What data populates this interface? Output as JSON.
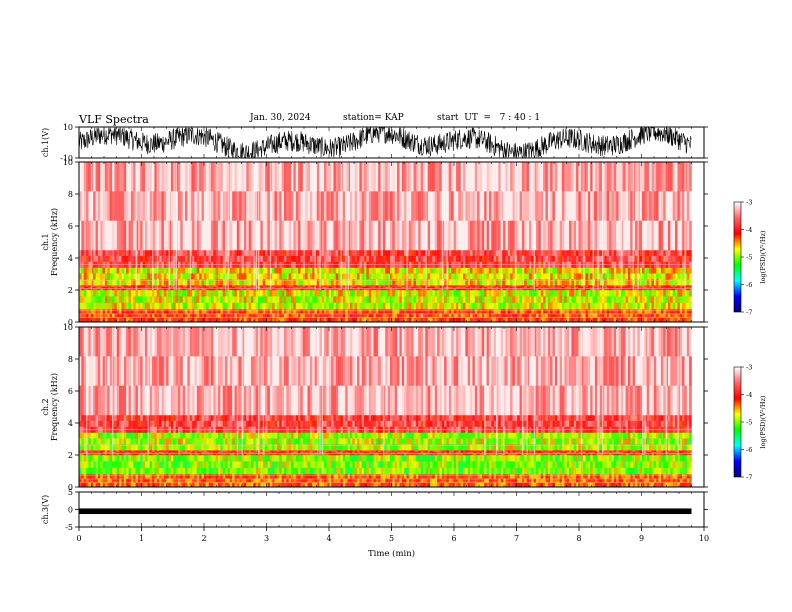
{
  "header": {
    "title": "VLF Spectra",
    "date": "Jan. 30, 2024",
    "station": "station= KAP",
    "start_ut": "start  UT  =   7 : 40 : 1"
  },
  "chart_data": [
    {
      "type": "line",
      "panel": "ch1-waveform",
      "ylabel": "ch.1(V)",
      "ylim": [
        -10,
        10
      ],
      "y_ticks": [
        "10",
        "-10"
      ],
      "xlim": [
        0,
        10
      ],
      "description_values": "dense noisy waveform spanning approx -10 to 10 V over 0-9.8 min"
    },
    {
      "type": "heatmap",
      "panel": "ch1-spectrogram",
      "ylabel": "ch.1\nFrequency (kHz)",
      "ylim": [
        0,
        10
      ],
      "y_ticks": [
        "0",
        "2",
        "4",
        "6",
        "8",
        "10"
      ],
      "xlim": [
        0,
        10
      ],
      "data_extent_min": 9.8,
      "colorbar": {
        "label": "log(PSD)(V²/Hz)",
        "range": [
          -7,
          -3
        ],
        "ticks": [
          "-3",
          "-4",
          "-5",
          "-6",
          "-7"
        ]
      },
      "bands": [
        {
          "f_low": 0,
          "f_high": 0.8,
          "log_psd": -4.2
        },
        {
          "f_low": 0.8,
          "f_high": 2.0,
          "log_psd": -4.8
        },
        {
          "f_low": 2.0,
          "f_high": 2.3,
          "log_psd": -4.0
        },
        {
          "f_low": 2.3,
          "f_high": 3.4,
          "log_psd": -4.7
        },
        {
          "f_low": 3.4,
          "f_high": 4.5,
          "log_psd": -3.8
        },
        {
          "f_low": 4.5,
          "f_high": 10,
          "log_psd": -3.3
        }
      ]
    },
    {
      "type": "heatmap",
      "panel": "ch2-spectrogram",
      "ylabel": "ch.2\nFrequency (kHz)",
      "ylim": [
        0,
        10
      ],
      "y_ticks": [
        "0",
        "2",
        "4",
        "6",
        "8",
        "10"
      ],
      "xlim": [
        0,
        10
      ],
      "data_extent_min": 9.8,
      "colorbar": {
        "label": "log(PSD)(V²/Hz)",
        "range": [
          -7,
          -3
        ],
        "ticks": [
          "-3",
          "-4",
          "-5",
          "-6",
          "-7"
        ]
      },
      "bands": [
        {
          "f_low": 0,
          "f_high": 0.8,
          "log_psd": -4.3
        },
        {
          "f_low": 0.8,
          "f_high": 2.0,
          "log_psd": -5.0
        },
        {
          "f_low": 2.0,
          "f_high": 2.3,
          "log_psd": -4.0
        },
        {
          "f_low": 2.3,
          "f_high": 3.4,
          "log_psd": -4.9
        },
        {
          "f_low": 3.4,
          "f_high": 4.5,
          "log_psd": -3.8
        },
        {
          "f_low": 4.5,
          "f_high": 10,
          "log_psd": -3.3
        }
      ]
    },
    {
      "type": "line",
      "panel": "ch3-waveform",
      "ylabel": "ch.3(V)",
      "ylim": [
        -5,
        5
      ],
      "y_ticks": [
        "5",
        "0",
        "-5"
      ],
      "xlim": [
        0,
        10
      ],
      "values_band": [
        -1.3,
        0.3
      ]
    }
  ],
  "x_axis": {
    "label": "Time  (min)",
    "ticks": [
      "0",
      "1",
      "2",
      "3",
      "4",
      "5",
      "6",
      "7",
      "8",
      "9",
      "10"
    ]
  },
  "colors": {
    "cmap": [
      "#000080",
      "#0000ff",
      "#00ffff",
      "#00ff00",
      "#ffff00",
      "#ff0000",
      "#ff6666",
      "#ffffff"
    ]
  }
}
